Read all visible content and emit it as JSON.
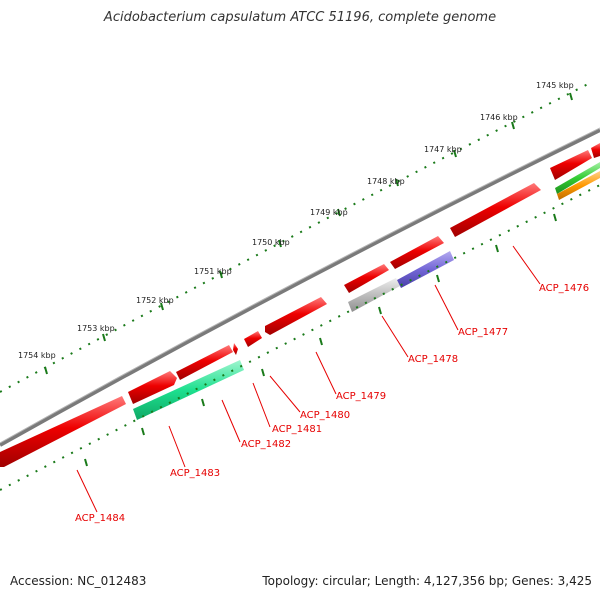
{
  "title": "Acidobacterium capsulatum ATCC 51196, complete genome",
  "footer": {
    "accession": "Accession: NC_012483",
    "summary": "Topology: circular; Length: 4,127,356 bp; Genes: 3,425"
  },
  "colors": {
    "backbone": "#7a7a7a",
    "cds": "#ee0000",
    "tick": "#1a7a1a",
    "label": "#e60000",
    "gene_green": "#1ee08f",
    "gene_gray": "#bdbdbd",
    "gene_purple": "#7366d6",
    "gene_lime": "#33cc33",
    "gene_orange": "#ff9900"
  },
  "kbp_labels": [
    "1745 kbp",
    "1746 kbp",
    "1747 kbp",
    "1748 kbp",
    "1749 kbp",
    "1750 kbp",
    "1751 kbp",
    "1752 kbp",
    "1753 kbp",
    "1754 kbp"
  ],
  "gene_labels": [
    "ACP_1476",
    "ACP_1477",
    "ACP_1478",
    "ACP_1479",
    "ACP_1480",
    "ACP_1481",
    "ACP_1482",
    "ACP_1483",
    "ACP_1484"
  ]
}
